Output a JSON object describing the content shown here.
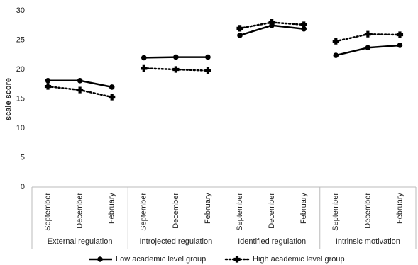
{
  "chart_data": {
    "type": "line",
    "y_label": "scale score",
    "categories": [
      "September",
      "December",
      "February",
      "September",
      "December",
      "February",
      "September",
      "December",
      "February",
      "September",
      "December",
      "February"
    ],
    "groups": [
      "External regulation",
      "Introjected regulation",
      "Identified regulation",
      "Intrinsic motivation"
    ],
    "series": [
      {
        "name": "Low academic level group",
        "color": "#000000",
        "dash": "solid",
        "values": [
          18.1,
          18.1,
          17.0,
          22.0,
          22.1,
          22.1,
          25.8,
          27.5,
          26.9,
          22.4,
          23.7,
          24.1
        ]
      },
      {
        "name": "High academic level group",
        "color": "#000000",
        "dash": "dotted",
        "values": [
          17.1,
          16.5,
          15.3,
          20.2,
          20.0,
          19.8,
          27.0,
          28.0,
          27.6,
          24.8,
          26.0,
          25.9
        ]
      }
    ],
    "ylim": [
      0,
      30
    ],
    "yticks": [
      0,
      5,
      10,
      15,
      20,
      25,
      30
    ],
    "grid": false,
    "legend": "bottom"
  }
}
